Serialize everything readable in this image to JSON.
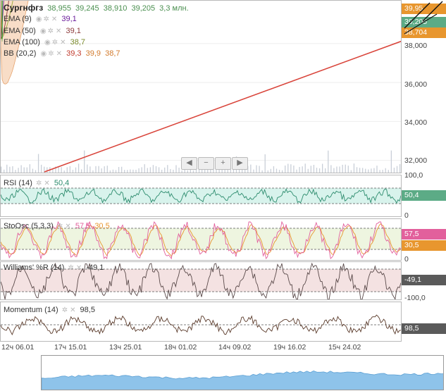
{
  "ticker": {
    "name": "Сургнфгз",
    "open": "38,955",
    "high": "39,245",
    "low": "38,910",
    "close": "39,205",
    "volume": "3,3 млн."
  },
  "indicators": [
    {
      "label": "EMA (9)",
      "value": "39,1",
      "color": "#6a1b9a"
    },
    {
      "label": "EMA (50)",
      "value": "39,1",
      "color": "#8d3b3b"
    },
    {
      "label": "EMA (100)",
      "value": "38,7",
      "color": "#7a8a2a"
    },
    {
      "label": "BB (20,2)",
      "values": [
        "39,3",
        "39,9",
        "38,7"
      ],
      "color": "#d27a2c"
    }
  ],
  "price_axis": {
    "ticks": [
      "38,000",
      "36,000",
      "34,000",
      "32,000"
    ],
    "tags": {
      "top": "39,95",
      "mid": "39,205",
      "low": "38,704"
    }
  },
  "rsi": {
    "label": "RSI (14)",
    "value": "50,4",
    "axis_top": "100,0",
    "axis_bottom": "0",
    "tag": "50,4"
  },
  "stoch": {
    "label": "StoOsc (5,3,3)",
    "k": "57,5",
    "d": "30,5",
    "tag_k": "57,5",
    "tag_d": "30,5",
    "axis_bottom": "0"
  },
  "williams": {
    "label": "Williams' %R (14)",
    "value": "-49,1",
    "tag": "-49,1",
    "axis_bottom": "-100,0"
  },
  "momentum": {
    "label": "Momentum (14)",
    "value": "98,5",
    "tag": "98,5"
  },
  "x_labels": [
    "12ч 06.01",
    "17ч 15.01",
    "13ч 25.01",
    "18ч 01.02",
    "14ч 09.02",
    "19ч 16.02",
    "15ч 24.02"
  ],
  "controls": {
    "prev": "◀",
    "minus": "−",
    "plus": "+",
    "next": "▶"
  },
  "colors": {
    "up_candle": "#2e9b3a",
    "down_candle": "#c8312b",
    "bb_fill": "#f6d2b4",
    "rsi_fill": "#d8f3ec",
    "stoch_fill": "#eef5e0",
    "will_fill": "#f4e2e2",
    "trendline": "#d9443a",
    "tag_green": "#5cab86",
    "tag_orange": "#e8962e",
    "tag_pink": "#e2609c",
    "tag_gray": "#5a5a5a"
  }
}
